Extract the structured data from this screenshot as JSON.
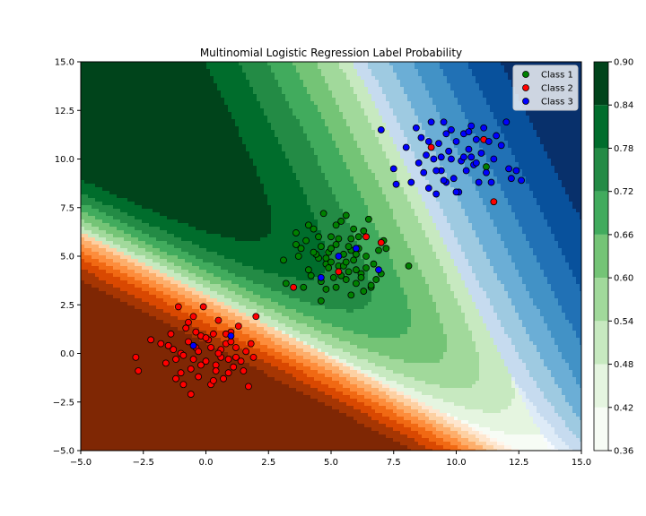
{
  "chart_data": {
    "type": "scatter",
    "title": "Multinomial Logistic Regression Label Probability",
    "xlim": [
      -5.0,
      15.0
    ],
    "ylim": [
      -5.0,
      15.0
    ],
    "x_ticks": [
      "−5.0",
      "−2.5",
      "0.0",
      "2.5",
      "5.0",
      "7.5",
      "10.0",
      "12.5",
      "15.0"
    ],
    "x_tick_values": [
      -5.0,
      -2.5,
      0.0,
      2.5,
      5.0,
      7.5,
      10.0,
      12.5,
      15.0
    ],
    "y_ticks": [
      "−5.0",
      "−2.5",
      "0.0",
      "2.5",
      "5.0",
      "7.5",
      "10.0",
      "12.5",
      "15.0"
    ],
    "y_tick_values": [
      -5.0,
      -2.5,
      0.0,
      2.5,
      5.0,
      7.5,
      10.0,
      12.5,
      15.0
    ],
    "legend_position": "top-right",
    "colorbar": {
      "ticks": [
        "0.36",
        "0.42",
        "0.48",
        "0.54",
        "0.60",
        "0.66",
        "0.72",
        "0.78",
        "0.84",
        "0.90"
      ],
      "levels": [
        0.36,
        0.42,
        0.48,
        0.54,
        0.6,
        0.66,
        0.72,
        0.78,
        0.84,
        0.9
      ],
      "colors": [
        "#f7fcf5",
        "#e5f5e0",
        "#c7e9c0",
        "#a1d99b",
        "#74c476",
        "#41ab5d",
        "#238b45",
        "#006d2c",
        "#00441b"
      ]
    },
    "region_colors": {
      "class1": [
        "#f7fcf5",
        "#e5f5e0",
        "#c7e9c0",
        "#a1d99b",
        "#74c476",
        "#41ab5d",
        "#238b45",
        "#006d2c",
        "#00441b"
      ],
      "class2": [
        "#fff5eb",
        "#fee6ce",
        "#fdd0a2",
        "#fdae6b",
        "#fd8d3c",
        "#f16913",
        "#d94801",
        "#a63603",
        "#7f2704"
      ],
      "class3": [
        "#f7fbff",
        "#deebf7",
        "#c6dbef",
        "#9ecae1",
        "#6baed6",
        "#4292c6",
        "#2171b5",
        "#08519c",
        "#08306b"
      ]
    },
    "series": [
      {
        "name": "Class 1",
        "color": "#008000",
        "points": [
          [
            3.1,
            4.8
          ],
          [
            3.6,
            6.2
          ],
          [
            3.8,
            5.4
          ],
          [
            4.0,
            5.8
          ],
          [
            4.1,
            4.3
          ],
          [
            4.3,
            6.4
          ],
          [
            4.5,
            4.9
          ],
          [
            4.6,
            5.5
          ],
          [
            4.7,
            7.2
          ],
          [
            4.8,
            4.6
          ],
          [
            4.9,
            5.2
          ],
          [
            5.0,
            6.0
          ],
          [
            5.1,
            3.9
          ],
          [
            5.2,
            5.6
          ],
          [
            5.3,
            4.5
          ],
          [
            5.4,
            6.8
          ],
          [
            5.5,
            5.1
          ],
          [
            5.6,
            7.1
          ],
          [
            5.7,
            4.2
          ],
          [
            5.8,
            5.9
          ],
          [
            5.9,
            4.8
          ],
          [
            6.0,
            3.6
          ],
          [
            6.1,
            5.4
          ],
          [
            6.2,
            4.1
          ],
          [
            6.3,
            6.3
          ],
          [
            6.4,
            5.0
          ],
          [
            6.5,
            6.9
          ],
          [
            6.6,
            3.4
          ],
          [
            6.7,
            4.6
          ],
          [
            6.9,
            5.3
          ],
          [
            7.1,
            5.8
          ],
          [
            7.2,
            5.4
          ],
          [
            3.2,
            3.6
          ],
          [
            3.9,
            3.4
          ],
          [
            4.2,
            4.0
          ],
          [
            4.4,
            5.1
          ],
          [
            4.6,
            3.7
          ],
          [
            4.8,
            3.3
          ],
          [
            5.0,
            4.7
          ],
          [
            5.2,
            3.4
          ],
          [
            5.4,
            4.0
          ],
          [
            5.6,
            3.8
          ],
          [
            5.8,
            5.3
          ],
          [
            6.0,
            4.3
          ],
          [
            6.2,
            3.9
          ],
          [
            6.4,
            4.4
          ],
          [
            6.6,
            3.5
          ],
          [
            6.8,
            3.8
          ],
          [
            7.0,
            4.1
          ],
          [
            5.0,
            5.4
          ],
          [
            5.3,
            5.9
          ],
          [
            5.5,
            4.5
          ],
          [
            4.9,
            4.4
          ],
          [
            5.7,
            5.5
          ],
          [
            6.1,
            6.0
          ],
          [
            4.3,
            5.2
          ],
          [
            3.7,
            5.0
          ],
          [
            4.5,
            6.0
          ],
          [
            5.2,
            6.6
          ],
          [
            6.3,
            3.2
          ],
          [
            8.1,
            4.5
          ],
          [
            11.2,
            9.6
          ],
          [
            5.8,
            3.0
          ],
          [
            4.6,
            2.7
          ],
          [
            5.9,
            6.4
          ],
          [
            4.1,
            6.6
          ],
          [
            3.6,
            5.6
          ],
          [
            5.6,
            4.7
          ],
          [
            6.0,
            5.1
          ],
          [
            4.8,
            4.9
          ]
        ]
      },
      {
        "name": "Class 2",
        "color": "#ff0000",
        "points": [
          [
            -2.8,
            -0.2
          ],
          [
            -2.7,
            -0.9
          ],
          [
            -2.2,
            0.7
          ],
          [
            -1.8,
            0.5
          ],
          [
            -1.6,
            -0.5
          ],
          [
            -1.4,
            1.0
          ],
          [
            -1.3,
            0.2
          ],
          [
            -1.2,
            -0.3
          ],
          [
            -1.1,
            2.4
          ],
          [
            -1.0,
            0.0
          ],
          [
            -0.9,
            -1.6
          ],
          [
            -0.8,
            1.3
          ],
          [
            -0.7,
            0.6
          ],
          [
            -0.6,
            -0.8
          ],
          [
            -0.5,
            1.9
          ],
          [
            -0.4,
            0.3
          ],
          [
            -0.3,
            -1.2
          ],
          [
            -0.2,
            0.9
          ],
          [
            -0.1,
            2.4
          ],
          [
            0.0,
            -0.4
          ],
          [
            0.1,
            0.7
          ],
          [
            0.2,
            -1.6
          ],
          [
            0.3,
            1.0
          ],
          [
            0.4,
            -0.6
          ],
          [
            0.5,
            1.7
          ],
          [
            0.6,
            0.2
          ],
          [
            0.7,
            -1.3
          ],
          [
            0.8,
            0.5
          ],
          [
            0.9,
            -0.3
          ],
          [
            1.0,
            1.1
          ],
          [
            1.1,
            -0.7
          ],
          [
            1.2,
            0.3
          ],
          [
            1.3,
            1.4
          ],
          [
            1.5,
            -0.9
          ],
          [
            1.6,
            0.1
          ],
          [
            1.7,
            -1.7
          ],
          [
            1.8,
            0.5
          ],
          [
            2.0,
            1.9
          ],
          [
            1.9,
            -0.2
          ],
          [
            -0.6,
            -2.1
          ],
          [
            -0.9,
            -0.1
          ],
          [
            -0.3,
            0.1
          ],
          [
            0.2,
            0.3
          ],
          [
            0.6,
            -0.2
          ],
          [
            1.0,
            0.6
          ],
          [
            -1.5,
            0.4
          ],
          [
            -0.5,
            -0.3
          ],
          [
            0.4,
            -0.9
          ],
          [
            -0.2,
            -0.6
          ],
          [
            0.8,
            1.0
          ],
          [
            -1.0,
            -1.0
          ],
          [
            0.0,
            0.8
          ],
          [
            0.5,
            0.0
          ],
          [
            1.4,
            -0.4
          ],
          [
            -0.7,
            1.6
          ],
          [
            -1.2,
            -1.3
          ],
          [
            0.3,
            -1.4
          ],
          [
            0.9,
            -1.0
          ],
          [
            -0.4,
            1.1
          ],
          [
            1.2,
            -0.2
          ],
          [
            9.0,
            10.6
          ],
          [
            11.5,
            7.8
          ],
          [
            5.3,
            4.2
          ],
          [
            6.4,
            6.0
          ],
          [
            3.5,
            3.4
          ],
          [
            7.0,
            5.7
          ],
          [
            11.1,
            11.0
          ]
        ]
      },
      {
        "name": "Class 3",
        "color": "#0000ff",
        "points": [
          [
            7.0,
            11.5
          ],
          [
            7.5,
            9.5
          ],
          [
            7.6,
            8.7
          ],
          [
            8.0,
            10.6
          ],
          [
            8.2,
            8.8
          ],
          [
            8.4,
            11.6
          ],
          [
            8.5,
            9.8
          ],
          [
            8.6,
            11.1
          ],
          [
            8.7,
            9.3
          ],
          [
            8.8,
            10.2
          ],
          [
            8.9,
            8.5
          ],
          [
            9.0,
            11.9
          ],
          [
            9.1,
            10.0
          ],
          [
            9.2,
            8.2
          ],
          [
            9.3,
            10.8
          ],
          [
            9.4,
            9.4
          ],
          [
            9.5,
            11.9
          ],
          [
            9.6,
            8.8
          ],
          [
            9.7,
            10.4
          ],
          [
            9.8,
            11.5
          ],
          [
            9.9,
            9.0
          ],
          [
            10.0,
            10.9
          ],
          [
            10.1,
            8.3
          ],
          [
            10.2,
            9.9
          ],
          [
            10.3,
            11.3
          ],
          [
            10.4,
            9.4
          ],
          [
            10.5,
            10.5
          ],
          [
            10.6,
            11.7
          ],
          [
            10.7,
            9.7
          ],
          [
            10.8,
            11.0
          ],
          [
            10.9,
            8.8
          ],
          [
            11.0,
            10.3
          ],
          [
            11.1,
            11.6
          ],
          [
            11.2,
            9.3
          ],
          [
            11.3,
            10.9
          ],
          [
            11.4,
            8.8
          ],
          [
            11.5,
            10.0
          ],
          [
            11.6,
            11.2
          ],
          [
            12.0,
            11.9
          ],
          [
            12.1,
            9.5
          ],
          [
            12.2,
            9.0
          ],
          [
            12.4,
            9.4
          ],
          [
            12.6,
            8.9
          ],
          [
            9.4,
            10.1
          ],
          [
            9.8,
            10.0
          ],
          [
            10.3,
            10.1
          ],
          [
            10.0,
            8.3
          ],
          [
            9.6,
            11.3
          ],
          [
            10.6,
            10.1
          ],
          [
            11.8,
            10.7
          ],
          [
            9.2,
            9.4
          ],
          [
            8.9,
            10.9
          ],
          [
            10.5,
            11.4
          ],
          [
            9.5,
            8.9
          ],
          [
            10.8,
            9.8
          ],
          [
            6.0,
            5.4
          ],
          [
            4.6,
            3.9
          ],
          [
            5.3,
            5.0
          ],
          [
            6.9,
            4.3
          ],
          [
            1.0,
            0.9
          ],
          [
            -0.5,
            0.4
          ]
        ]
      }
    ]
  }
}
